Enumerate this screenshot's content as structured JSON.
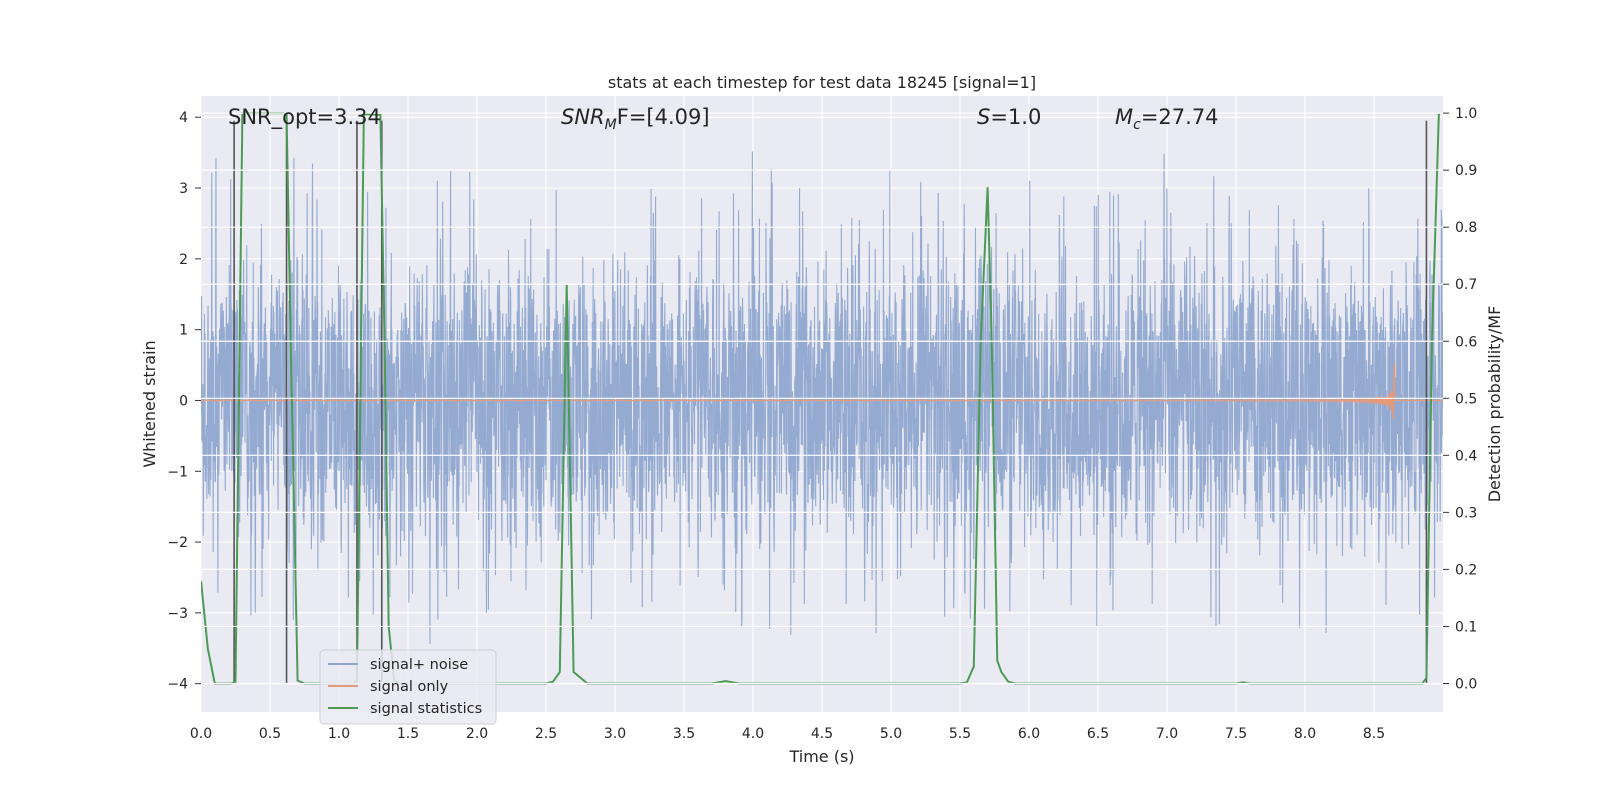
{
  "chart_data": {
    "type": "line",
    "title": "stats at each timestep for test data 18245 [signal=1]",
    "xlabel": "Time (s)",
    "ylabel_left": "Whitened strain",
    "ylabel_right": "Detection probability/MF",
    "xlim": [
      0.0,
      9.0
    ],
    "ylim_left": [
      -4.4,
      4.3
    ],
    "ylim_right": [
      -0.05,
      1.03
    ],
    "x_ticks": [
      0.0,
      0.5,
      1.0,
      1.5,
      2.0,
      2.5,
      3.0,
      3.5,
      4.0,
      4.5,
      5.0,
      5.5,
      6.0,
      6.5,
      7.0,
      7.5,
      8.0,
      8.5
    ],
    "x_tick_labels": [
      "0.0",
      "0.5",
      "1.0",
      "1.5",
      "2.0",
      "2.5",
      "3.0",
      "3.5",
      "4.0",
      "4.5",
      "5.0",
      "5.5",
      "6.0",
      "6.5",
      "7.0",
      "7.5",
      "8.0",
      "8.5"
    ],
    "y_left_ticks": [
      -4,
      -3,
      -2,
      -1,
      0,
      1,
      2,
      3,
      4
    ],
    "y_left_tick_labels": [
      "−4",
      "−3",
      "−2",
      "−1",
      "0",
      "1",
      "2",
      "3",
      "4"
    ],
    "y_right_ticks": [
      0.0,
      0.1,
      0.2,
      0.3,
      0.4,
      0.5,
      0.6,
      0.7,
      0.8,
      0.9,
      1.0
    ],
    "y_right_tick_labels": [
      "0.0",
      "0.1",
      "0.2",
      "0.3",
      "0.4",
      "0.5",
      "0.6",
      "0.7",
      "0.8",
      "0.9",
      "1.0"
    ],
    "grid": true,
    "legend_location": "lower-left",
    "annotations": {
      "snr_opt": "SNR_opt=3.34",
      "snr_mf_sym": "SNR",
      "snr_mf_sub": "M",
      "snr_mf_rest": "F=[4.09]",
      "s_sym": "S",
      "s_rest": "=1.0",
      "mc_sym": "M",
      "mc_sub": "c",
      "mc_rest": "=27.74"
    },
    "series": [
      {
        "name": "signal+ noise",
        "color": "#8fa6cf",
        "axis": "left",
        "description_range": [
          -4.0,
          4.0
        ],
        "duration_s": 9.0
      },
      {
        "name": "signal only",
        "color": "#e69a7c",
        "axis": "left",
        "chirp_start_s": 5.5,
        "merger_s": 8.65,
        "peak_amplitude": 0.85
      },
      {
        "name": "signal statistics",
        "color": "#4c9a55",
        "axis": "right",
        "x": [
          0.0,
          0.05,
          0.1,
          0.22,
          0.25,
          0.3,
          0.6,
          0.62,
          0.65,
          0.7,
          0.75,
          1.1,
          1.13,
          1.18,
          1.3,
          1.33,
          1.36,
          1.4,
          1.45,
          2.5,
          2.55,
          2.6,
          2.65,
          2.7,
          2.8,
          3.7,
          3.8,
          3.9,
          5.5,
          5.55,
          5.6,
          5.65,
          5.7,
          5.73,
          5.77,
          5.8,
          5.85,
          5.9,
          7.5,
          7.55,
          7.6,
          8.85,
          8.88,
          8.92,
          8.97
        ],
        "y": [
          0.18,
          0.06,
          0.0,
          0.0,
          0.003,
          1.0,
          1.0,
          0.998,
          0.6,
          0.005,
          0.0,
          0.0,
          0.005,
          0.998,
          0.997,
          0.6,
          0.1,
          0.005,
          0.0,
          0.0,
          0.003,
          0.02,
          0.7,
          0.02,
          0.0,
          0.0,
          0.004,
          0.0,
          0.0,
          0.002,
          0.03,
          0.6,
          0.87,
          0.6,
          0.04,
          0.02,
          0.003,
          0.0,
          0.0,
          0.002,
          0.0,
          0.0,
          0.01,
          0.6,
          1.0
        ]
      }
    ],
    "markers": {
      "color": "#555555",
      "x": [
        0.24,
        0.62,
        1.13,
        1.31,
        8.88
      ]
    }
  }
}
